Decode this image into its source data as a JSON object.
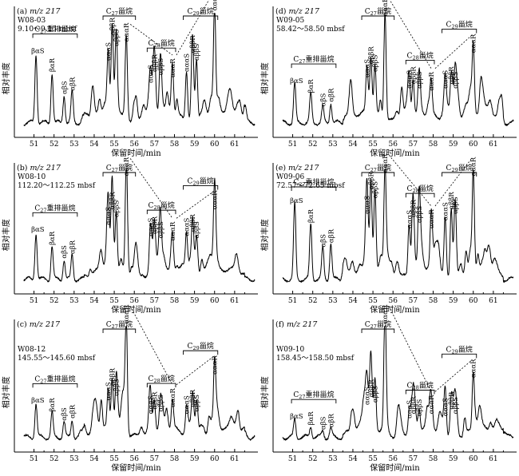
{
  "chart_data": [
    {
      "type": "line",
      "panel": "(a)",
      "mz": "m/z 217",
      "sample": "W08-03",
      "depth": "9.10～9.15 mbsf",
      "xlabel": "保留时间/min",
      "ylabel": "相对丰度",
      "xlim": [
        50.5,
        62.0
      ],
      "xticks": [
        "51",
        "52",
        "53",
        "54",
        "55",
        "56",
        "57",
        "58",
        "59",
        "60",
        "61"
      ],
      "groups": [
        {
          "label": "C27重排甾烷",
          "x0": 51.1,
          "x1": 53.0
        },
        {
          "label": "C27甾烷",
          "x0": 54.6,
          "x1": 55.9
        },
        {
          "label": "C28甾烷",
          "x0": 56.8,
          "x1": 57.9
        },
        {
          "label": "C29甾烷",
          "x0": 58.6,
          "x1": 60.0
        }
      ],
      "peaks": [
        {
          "label": "βαS",
          "x": 51.1,
          "h": 0.62
        },
        {
          "label": "βαR",
          "x": 51.9,
          "h": 0.45
        },
        {
          "label": "αβS",
          "x": 52.5,
          "h": 0.25
        },
        {
          "label": "αβR",
          "x": 52.9,
          "h": 0.28
        },
        {
          "label": "αααS",
          "x": 54.7,
          "h": 0.55
        },
        {
          "label": "αββR",
          "x": 54.9,
          "h": 0.78
        },
        {
          "label": "αββS",
          "x": 55.1,
          "h": 0.68
        },
        {
          "label": "αααR",
          "x": 55.6,
          "h": 0.72
        },
        {
          "label": "αααS",
          "x": 56.8,
          "h": 0.35
        },
        {
          "label": "αββR",
          "x": 57.0,
          "h": 0.45
        },
        {
          "label": "αββS",
          "x": 57.3,
          "h": 0.42
        },
        {
          "label": "αααR",
          "x": 57.9,
          "h": 0.4
        },
        {
          "label": "αααS",
          "x": 58.6,
          "h": 0.45
        },
        {
          "label": "αββR",
          "x": 58.9,
          "h": 0.62
        },
        {
          "label": "αββS",
          "x": 59.1,
          "h": 0.55
        },
        {
          "label": "αααR",
          "x": 60.0,
          "h": 1.0
        }
      ]
    },
    {
      "type": "line",
      "panel": "(b)",
      "mz": "m/z 217",
      "sample": "W08-10",
      "depth": "112.20～112.25 mbsf",
      "xlabel": "保留时间/min",
      "ylabel": "相对丰度",
      "xlim": [
        50.5,
        62.0
      ],
      "xticks": [
        "51",
        "52",
        "53",
        "54",
        "55",
        "56",
        "57",
        "58",
        "59",
        "60",
        "61"
      ],
      "groups": [
        {
          "label": "C27重排甾烷",
          "x0": 51.1,
          "x1": 53.0
        },
        {
          "label": "C27甾烷",
          "x0": 54.6,
          "x1": 55.9
        },
        {
          "label": "C28甾烷",
          "x0": 56.8,
          "x1": 57.9
        },
        {
          "label": "C29甾烷",
          "x0": 58.6,
          "x1": 60.0
        }
      ],
      "peaks": [
        {
          "label": "βαS",
          "x": 51.1,
          "h": 0.42
        },
        {
          "label": "βαR",
          "x": 51.9,
          "h": 0.3
        },
        {
          "label": "αβS",
          "x": 52.5,
          "h": 0.18
        },
        {
          "label": "αβR",
          "x": 52.9,
          "h": 0.22
        },
        {
          "label": "αααS",
          "x": 54.7,
          "h": 0.48
        },
        {
          "label": "αββR",
          "x": 54.9,
          "h": 0.62
        },
        {
          "label": "αββS",
          "x": 55.1,
          "h": 0.55
        },
        {
          "label": "αααR",
          "x": 55.6,
          "h": 0.92
        },
        {
          "label": "αααS",
          "x": 56.8,
          "h": 0.38
        },
        {
          "label": "αββR",
          "x": 57.0,
          "h": 0.4
        },
        {
          "label": "αββS",
          "x": 57.3,
          "h": 0.36
        },
        {
          "label": "αααR",
          "x": 57.9,
          "h": 0.34
        },
        {
          "label": "αααS",
          "x": 58.6,
          "h": 0.38
        },
        {
          "label": "αββR",
          "x": 58.9,
          "h": 0.42
        },
        {
          "label": "αββS",
          "x": 59.1,
          "h": 0.36
        },
        {
          "label": "αααR",
          "x": 60.0,
          "h": 0.62
        }
      ]
    },
    {
      "type": "line",
      "panel": "(c)",
      "mz": "m/z 217",
      "sample": "W08-12",
      "depth": "145.55～145.60 mbsf",
      "xlabel": "保留时间/min",
      "ylabel": "相对丰度",
      "xlim": [
        50.5,
        62.0
      ],
      "xticks": [
        "51",
        "52",
        "53",
        "54",
        "55",
        "56",
        "57",
        "58",
        "59",
        "60",
        "61"
      ],
      "groups": [
        {
          "label": "C27重排甾烷",
          "x0": 51.1,
          "x1": 53.0
        },
        {
          "label": "C27甾烷",
          "x0": 54.6,
          "x1": 55.9
        },
        {
          "label": "C28甾烷",
          "x0": 56.8,
          "x1": 57.9
        },
        {
          "label": "C29甾烷",
          "x0": 58.6,
          "x1": 60.0
        }
      ],
      "peaks": [
        {
          "label": "βαS",
          "x": 51.1,
          "h": 0.3
        },
        {
          "label": "βαR",
          "x": 51.9,
          "h": 0.22
        },
        {
          "label": "αβS",
          "x": 52.5,
          "h": 0.14
        },
        {
          "label": "αβR",
          "x": 52.9,
          "h": 0.16
        },
        {
          "label": "αααS",
          "x": 54.7,
          "h": 0.32
        },
        {
          "label": "αββR",
          "x": 54.9,
          "h": 0.45
        },
        {
          "label": "αββS",
          "x": 55.1,
          "h": 0.36
        },
        {
          "label": "αααR",
          "x": 55.6,
          "h": 1.0
        },
        {
          "label": "αααS",
          "x": 56.8,
          "h": 0.2
        },
        {
          "label": "αββR",
          "x": 57.0,
          "h": 0.24
        },
        {
          "label": "αββS",
          "x": 57.3,
          "h": 0.22
        },
        {
          "label": "αααR",
          "x": 57.9,
          "h": 0.26
        },
        {
          "label": "αααS",
          "x": 58.6,
          "h": 0.2
        },
        {
          "label": "αββR",
          "x": 58.9,
          "h": 0.26
        },
        {
          "label": "αββS",
          "x": 59.1,
          "h": 0.22
        },
        {
          "label": "αααR",
          "x": 60.0,
          "h": 0.55
        }
      ]
    },
    {
      "type": "line",
      "panel": "(d)",
      "mz": "m/z 217",
      "sample": "W09-05",
      "depth": "58.42～58.50 mbsf",
      "xlabel": "保留时间/min",
      "ylabel": "相对丰度",
      "xlim": [
        50.5,
        62.0
      ],
      "xticks": [
        "51",
        "52",
        "53",
        "54",
        "55",
        "56",
        "57",
        "58",
        "59",
        "60",
        "61"
      ],
      "groups": [
        {
          "label": "C27重排甾烷",
          "x0": 51.1,
          "x1": 53.0
        },
        {
          "label": "C27甾烷",
          "x0": 54.6,
          "x1": 55.9
        },
        {
          "label": "C28甾烷",
          "x0": 56.8,
          "x1": 57.9
        },
        {
          "label": "C29甾烷",
          "x0": 58.6,
          "x1": 60.0
        }
      ],
      "peaks": [
        {
          "label": "βαS",
          "x": 51.1,
          "h": 0.35
        },
        {
          "label": "βαR",
          "x": 51.9,
          "h": 0.26
        },
        {
          "label": "αβS",
          "x": 52.5,
          "h": 0.14
        },
        {
          "label": "αβR",
          "x": 52.9,
          "h": 0.18
        },
        {
          "label": "αααS",
          "x": 54.7,
          "h": 0.4
        },
        {
          "label": "αββR",
          "x": 54.9,
          "h": 0.52
        },
        {
          "label": "αββS",
          "x": 55.1,
          "h": 0.45
        },
        {
          "label": "αααR",
          "x": 55.6,
          "h": 0.95
        },
        {
          "label": "αααS",
          "x": 56.8,
          "h": 0.3
        },
        {
          "label": "αββR",
          "x": 57.0,
          "h": 0.34
        },
        {
          "label": "αββS",
          "x": 57.3,
          "h": 0.3
        },
        {
          "label": "αααR",
          "x": 57.9,
          "h": 0.28
        },
        {
          "label": "αααS",
          "x": 58.6,
          "h": 0.3
        },
        {
          "label": "αββR",
          "x": 58.9,
          "h": 0.34
        },
        {
          "label": "αββS",
          "x": 59.1,
          "h": 0.3
        },
        {
          "label": "αααR",
          "x": 60.0,
          "h": 0.62
        }
      ]
    },
    {
      "type": "line",
      "panel": "(e)",
      "mz": "m/z 217",
      "sample": "W09-06",
      "depth": "72.57～72.65 mbsf",
      "xlabel": "保留时间/min",
      "ylabel": "相对丰度",
      "xlim": [
        50.5,
        62.0
      ],
      "xticks": [
        "51",
        "52",
        "53",
        "54",
        "55",
        "56",
        "57",
        "58",
        "59",
        "60",
        "61"
      ],
      "groups": [
        {
          "label": "C27重排甾烷",
          "x0": 51.1,
          "x1": 53.0
        },
        {
          "label": "C27甾烷",
          "x0": 54.6,
          "x1": 55.9
        },
        {
          "label": "C28甾烷",
          "x0": 56.8,
          "x1": 57.9
        },
        {
          "label": "C29甾烷",
          "x0": 58.6,
          "x1": 60.0
        }
      ],
      "peaks": [
        {
          "label": "βαS",
          "x": 51.1,
          "h": 0.68
        },
        {
          "label": "βαR",
          "x": 51.9,
          "h": 0.5
        },
        {
          "label": "αβS",
          "x": 52.5,
          "h": 0.28
        },
        {
          "label": "αβR",
          "x": 52.9,
          "h": 0.32
        },
        {
          "label": "αααS",
          "x": 54.7,
          "h": 0.58
        },
        {
          "label": "αββR",
          "x": 54.9,
          "h": 0.8
        },
        {
          "label": "αββS",
          "x": 55.1,
          "h": 0.72
        },
        {
          "label": "αααR",
          "x": 55.6,
          "h": 0.95
        },
        {
          "label": "αααS",
          "x": 56.8,
          "h": 0.45
        },
        {
          "label": "αββR",
          "x": 57.0,
          "h": 0.55
        },
        {
          "label": "αββS",
          "x": 57.3,
          "h": 0.5
        },
        {
          "label": "αααR",
          "x": 57.9,
          "h": 0.45
        },
        {
          "label": "αααS",
          "x": 58.6,
          "h": 0.52
        },
        {
          "label": "αββR",
          "x": 58.9,
          "h": 0.62
        },
        {
          "label": "αββS",
          "x": 59.1,
          "h": 0.58
        },
        {
          "label": "αααR",
          "x": 60.0,
          "h": 0.92
        }
      ]
    },
    {
      "type": "line",
      "panel": "(f)",
      "mz": "m/z 217",
      "sample": "W09-10",
      "depth": "158.45～158.50 mbsf",
      "xlabel": "保留时间/min",
      "ylabel": "相对丰度",
      "xlim": [
        50.5,
        62.0
      ],
      "xticks": [
        "51",
        "52",
        "53",
        "54",
        "55",
        "56",
        "57",
        "58",
        "59",
        "60",
        "61"
      ],
      "groups": [
        {
          "label": "C27重排甾烷",
          "x0": 51.1,
          "x1": 53.0
        },
        {
          "label": "C27甾烷",
          "x0": 54.6,
          "x1": 55.9
        },
        {
          "label": "C28甾烷",
          "x0": 56.8,
          "x1": 57.9
        },
        {
          "label": "C29甾烷",
          "x0": 58.6,
          "x1": 60.0
        }
      ],
      "peaks": [
        {
          "label": "βαS",
          "x": 51.1,
          "h": 0.16
        },
        {
          "label": "βαR",
          "x": 51.9,
          "h": 0.1
        },
        {
          "label": "αβS",
          "x": 52.5,
          "h": 0.06
        },
        {
          "label": "αβR",
          "x": 52.9,
          "h": 0.08
        },
        {
          "label": "αααS",
          "x": 54.7,
          "h": 0.28
        },
        {
          "label": "αββR",
          "x": 54.9,
          "h": 0.35
        },
        {
          "label": "αββS",
          "x": 55.1,
          "h": 0.3
        },
        {
          "label": "αααR",
          "x": 55.6,
          "h": 1.0
        },
        {
          "label": "αααS",
          "x": 56.8,
          "h": 0.16
        },
        {
          "label": "αββR",
          "x": 57.0,
          "h": 0.2
        },
        {
          "label": "αββS",
          "x": 57.3,
          "h": 0.18
        },
        {
          "label": "αααR",
          "x": 57.9,
          "h": 0.2
        },
        {
          "label": "αααS",
          "x": 58.6,
          "h": 0.18
        },
        {
          "label": "αββR",
          "x": 58.9,
          "h": 0.24
        },
        {
          "label": "αββS",
          "x": 59.1,
          "h": 0.2
        },
        {
          "label": "αααR",
          "x": 60.0,
          "h": 0.52
        }
      ]
    }
  ]
}
